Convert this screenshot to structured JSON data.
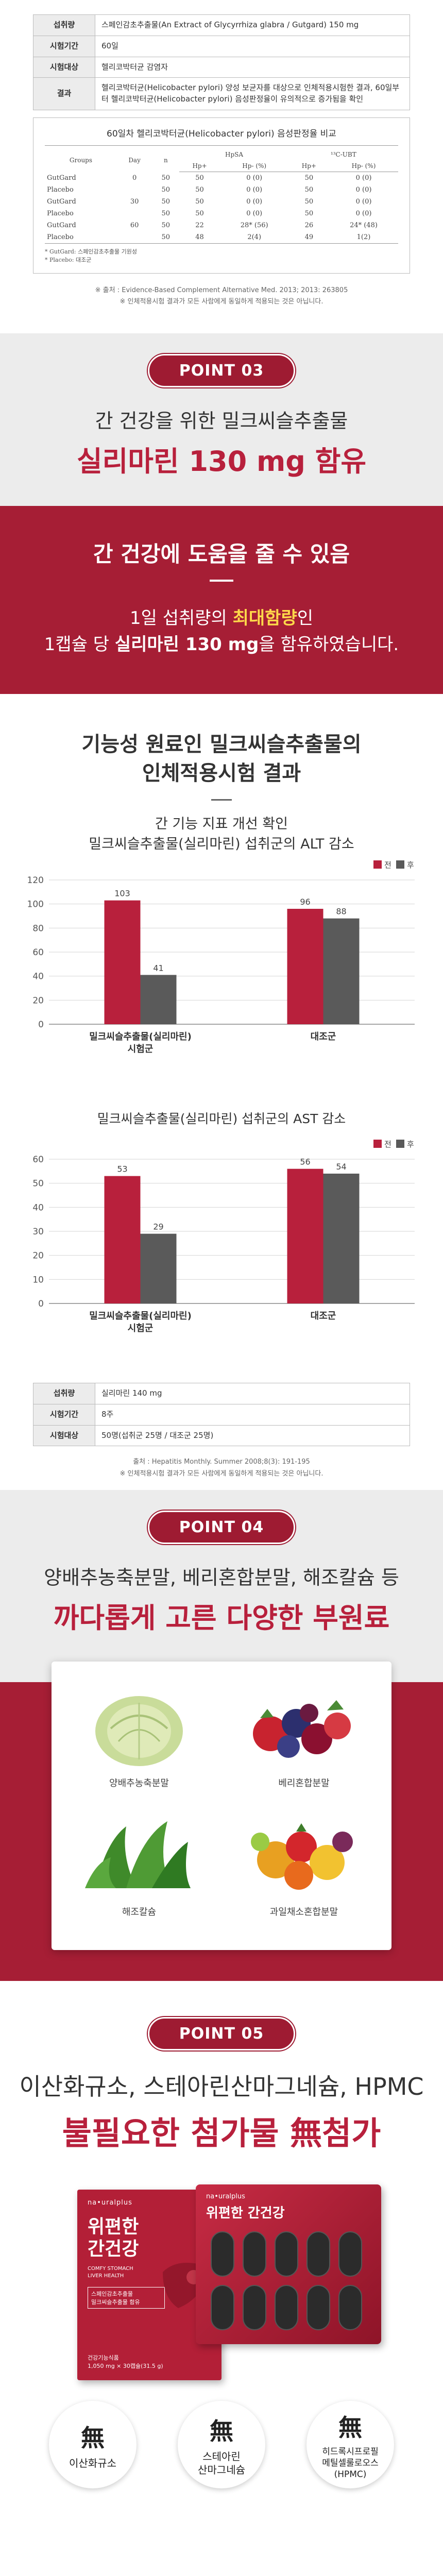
{
  "top_table": {
    "rows": [
      {
        "h": "섭취량",
        "v": "스페인감초추출물(An Extract of Glycyrrhiza glabra / Gutgard) 150 mg"
      },
      {
        "h": "시험기간",
        "v": "60일"
      },
      {
        "h": "시험대상",
        "v": "헬리코박터균 감염자"
      },
      {
        "h": "결과",
        "v": "헬리코박터균(Helicobacter pylori) 양성 보균자를 대상으로 인체적용시험한 결과, 60일부터 헬리코박터균(Helicobacter pylori) 음성판정율이 유의적으로 증가됨을 확인"
      }
    ]
  },
  "study": {
    "title": "60일차 헬리코박터균(Helicobacter pylori) 음성판정율 비교",
    "col_groups": "Groups",
    "col_day": "Day",
    "col_n": "n",
    "hpsa": "HpSA",
    "ubt": "¹³C-UBT",
    "hp_pos": "Hp+",
    "hp_neg": "Hp- (%)",
    "rows": [
      {
        "g": "GutGard",
        "day": "0",
        "n": "50",
        "a": "50",
        "b": "0 (0)",
        "c": "50",
        "d": "0 (0)"
      },
      {
        "g": "Placebo",
        "day": "",
        "n": "50",
        "a": "50",
        "b": "0 (0)",
        "c": "50",
        "d": "0 (0)"
      },
      {
        "g": "GutGard",
        "day": "30",
        "n": "50",
        "a": "50",
        "b": "0 (0)",
        "c": "50",
        "d": "0 (0)"
      },
      {
        "g": "Placebo",
        "day": "",
        "n": "50",
        "a": "50",
        "b": "0 (0)",
        "c": "50",
        "d": "0 (0)"
      },
      {
        "g": "GutGard",
        "day": "60",
        "n": "50",
        "a": "22",
        "b": "28* (56)",
        "c": "26",
        "d": "24* (48)"
      },
      {
        "g": "Placebo",
        "day": "",
        "n": "50",
        "a": "48",
        "b": "2(4)",
        "c": "49",
        "d": "1(2)"
      }
    ],
    "notes": [
      "* GutGard: 스페인감초추출물 기원성",
      "* Placebo: 대조군"
    ]
  },
  "top_note": [
    "※ 출처 : Evidence-Based Complement Alternative Med. 2013; 2013: 263805",
    "※ 인체적용시험 결과가 모든 사람에게 동일하게 적용되는 것은 아닙니다."
  ],
  "point3": {
    "badge": "POINT 03",
    "sub": "간 건강을 위한 밀크씨슬추출물",
    "main": "실리마린 130 mg 함유"
  },
  "red_band": {
    "head": "간 건강에 도움을 줄 수 있음",
    "line1_a": "1일 섭취량의 ",
    "line1_b": "최대함량",
    "line1_c": "인",
    "line2_a": "1캡슐 당 ",
    "line2_b": "실리마린 130 mg",
    "line2_c": "을 함유하였습니다."
  },
  "trial": {
    "title1": "기능성 원료인 밀크씨슬추출물의",
    "title2": "인체적용시험 결과",
    "sub1": "간 기능 지표 개선 확인",
    "sub2": "밀크씨슬추출물(실리마린) 섭취군의 ALT 감소"
  },
  "chart_data": [
    {
      "type": "bar",
      "title": "",
      "categories": [
        "밀크씨슬추출물(실리마린)\n시험군",
        "대조군"
      ],
      "series": [
        {
          "name": "전",
          "color": "#b8203c",
          "values": [
            103,
            96
          ]
        },
        {
          "name": "후",
          "color": "#5a5a5a",
          "values": [
            41,
            88
          ]
        }
      ],
      "ylim": [
        0,
        120
      ],
      "yticks": [
        0,
        20,
        40,
        60,
        80,
        100,
        120
      ],
      "grid": true,
      "legend": "top-right"
    },
    {
      "type": "bar",
      "title": "밀크씨슬추출물(실리마린) 섭취군의 AST 감소",
      "categories": [
        "밀크씨슬추출물(실리마린)\n시험군",
        "대조군"
      ],
      "series": [
        {
          "name": "전",
          "color": "#b8203c",
          "values": [
            53,
            56
          ]
        },
        {
          "name": "후",
          "color": "#5a5a5a",
          "values": [
            29,
            54
          ]
        }
      ],
      "ylim": [
        0,
        60
      ],
      "yticks": [
        0,
        10,
        20,
        30,
        40,
        50,
        60
      ],
      "grid": true,
      "legend": "top-right"
    }
  ],
  "bottom_table": {
    "rows": [
      {
        "h": "섭취량",
        "v": "실리마린 140 mg"
      },
      {
        "h": "시험기간",
        "v": "8주"
      },
      {
        "h": "시험대상",
        "v": "50명(섭취군 25명 / 대조군 25명)"
      }
    ],
    "note": [
      "출처 : Hepatitis Monthly. Summer 2008;8(3): 191-195",
      "※ 인체적용시험 결과가 모든 사람에게 동일하게 적용되는 것은 아닙니다."
    ]
  },
  "point4": {
    "badge": "POINT 04",
    "sub": "양배추농축분말, 베리혼합분말, 해조칼슘 등",
    "main": "까다롭게 고른 다양한 부원료",
    "items": [
      "양배추농축분말",
      "베리혼합분말",
      "해조칼슘",
      "과일채소혼합분말"
    ]
  },
  "point5": {
    "badge": "POINT 05",
    "sub": "이산화규소, 스테아린산마그네슘, HPMC",
    "main": "불필요한 첨가물 無첨가",
    "pkg_brand": "na•uralplus",
    "pkg_title1": "위편한",
    "pkg_title2": "간건강",
    "pkg_en": "COMFY STOMACH LIVER HEALTH",
    "pkg_lines": [
      "스페인감초추출물",
      "밀크씨슬추출물 함유"
    ],
    "pkg_foot1": "건강기능식품",
    "pkg_foot2": "1,050 mg × 30캡슐(31.5 g)",
    "blister_brand": "na•uralplus",
    "blister_title": "위편한 간건강",
    "badges": [
      {
        "mu": "無",
        "t": "이산화규소"
      },
      {
        "mu": "無",
        "t": "스테아린\n산마그네슘"
      },
      {
        "mu": "無",
        "t": "히드록시프로필\n메틸셀룰로오스\n(HPMC)"
      }
    ]
  }
}
